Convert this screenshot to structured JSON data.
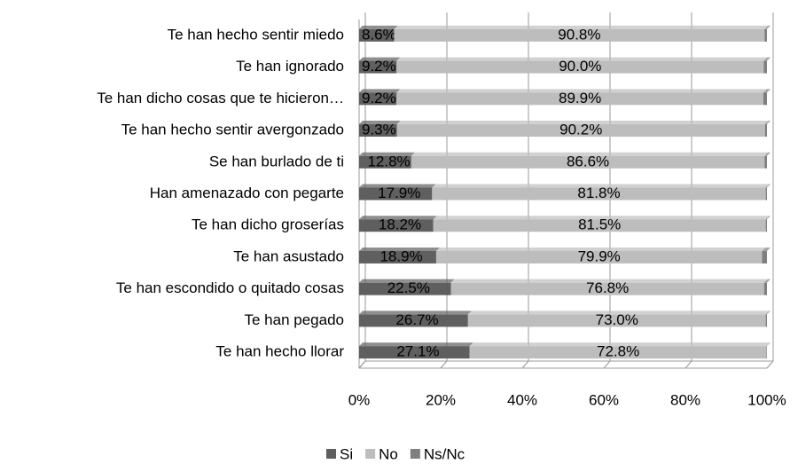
{
  "chart_data": {
    "type": "stacked-bar-horizontal",
    "categories": [
      "Te han hecho sentir miedo",
      "Te han ignorado",
      "Te han dicho cosas que te hicieron…",
      "Te han hecho sentir avergonzado",
      "Se han burlado de ti",
      "Han amenazado con pegarte",
      "Te han dicho groserías",
      "Te han asustado",
      "Te han escondido o quitado cosas",
      "Te han pegado",
      "Te han hecho llorar"
    ],
    "series": [
      {
        "name": "Si",
        "color": "#5f5f5f",
        "values": [
          8.6,
          9.2,
          9.2,
          9.3,
          12.8,
          17.9,
          18.2,
          18.9,
          22.5,
          26.7,
          27.1
        ],
        "value_labels": [
          "8.6%",
          "9.2%",
          "9.2%",
          "9.3%",
          "12.8%",
          "17.9%",
          "18.2%",
          "18.9%",
          "22.5%",
          "26.7%",
          "27.1%"
        ]
      },
      {
        "name": "No",
        "color": "#bdbdbd",
        "values": [
          90.8,
          90.0,
          89.9,
          90.2,
          86.6,
          81.8,
          81.5,
          79.9,
          76.8,
          73.0,
          72.8
        ],
        "value_labels": [
          "90.8%",
          "90.0%",
          "89.9%",
          "90.2%",
          "86.6%",
          "81.8%",
          "81.5%",
          "79.9%",
          "76.8%",
          "73.0%",
          "72.8%"
        ]
      },
      {
        "name": "Ns/Nc",
        "color": "#7f7f7f",
        "values": [
          0.6,
          0.8,
          0.9,
          0.5,
          0.6,
          0.3,
          0.3,
          1.2,
          0.7,
          0.3,
          0.1
        ]
      }
    ],
    "xlim": [
      0,
      100
    ],
    "xticks": [
      {
        "value": 0,
        "label": "0%"
      },
      {
        "value": 20,
        "label": "20%"
      },
      {
        "value": 40,
        "label": "40%"
      },
      {
        "value": 60,
        "label": "60%"
      },
      {
        "value": 80,
        "label": "80%"
      },
      {
        "value": 100,
        "label": "100%"
      }
    ],
    "grid": true
  }
}
